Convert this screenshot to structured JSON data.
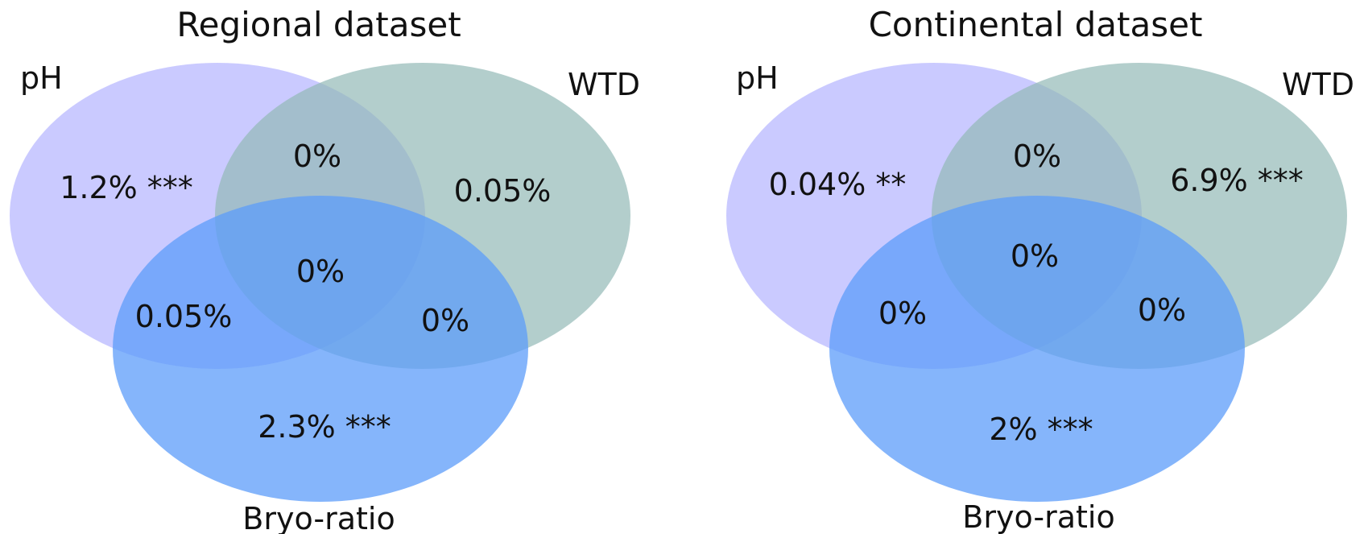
{
  "colors": {
    "ph": "#b3b3ff",
    "wtd": "#93b9b7",
    "bryo": "#5c9cfa"
  },
  "diagrams": [
    {
      "title": "Regional dataset",
      "sets": {
        "ph": "pH",
        "wtd": "WTD",
        "bryo": "Bryo-ratio"
      },
      "regions": {
        "ph_only": "1.2% ***",
        "wtd_only": "0.05%",
        "bryo_only": "2.3% ***",
        "ph_wtd": "0%",
        "ph_bryo": "0.05%",
        "wtd_bryo": "0%",
        "all": "0%"
      }
    },
    {
      "title": "Continental dataset",
      "sets": {
        "ph": "pH",
        "wtd": "WTD",
        "bryo": "Bryo-ratio"
      },
      "regions": {
        "ph_only": "0.04% **",
        "wtd_only": "6.9% ***",
        "bryo_only": "2% ***",
        "ph_wtd": "0%",
        "ph_bryo": "0%",
        "wtd_bryo": "0%",
        "all": "0%"
      }
    }
  ]
}
